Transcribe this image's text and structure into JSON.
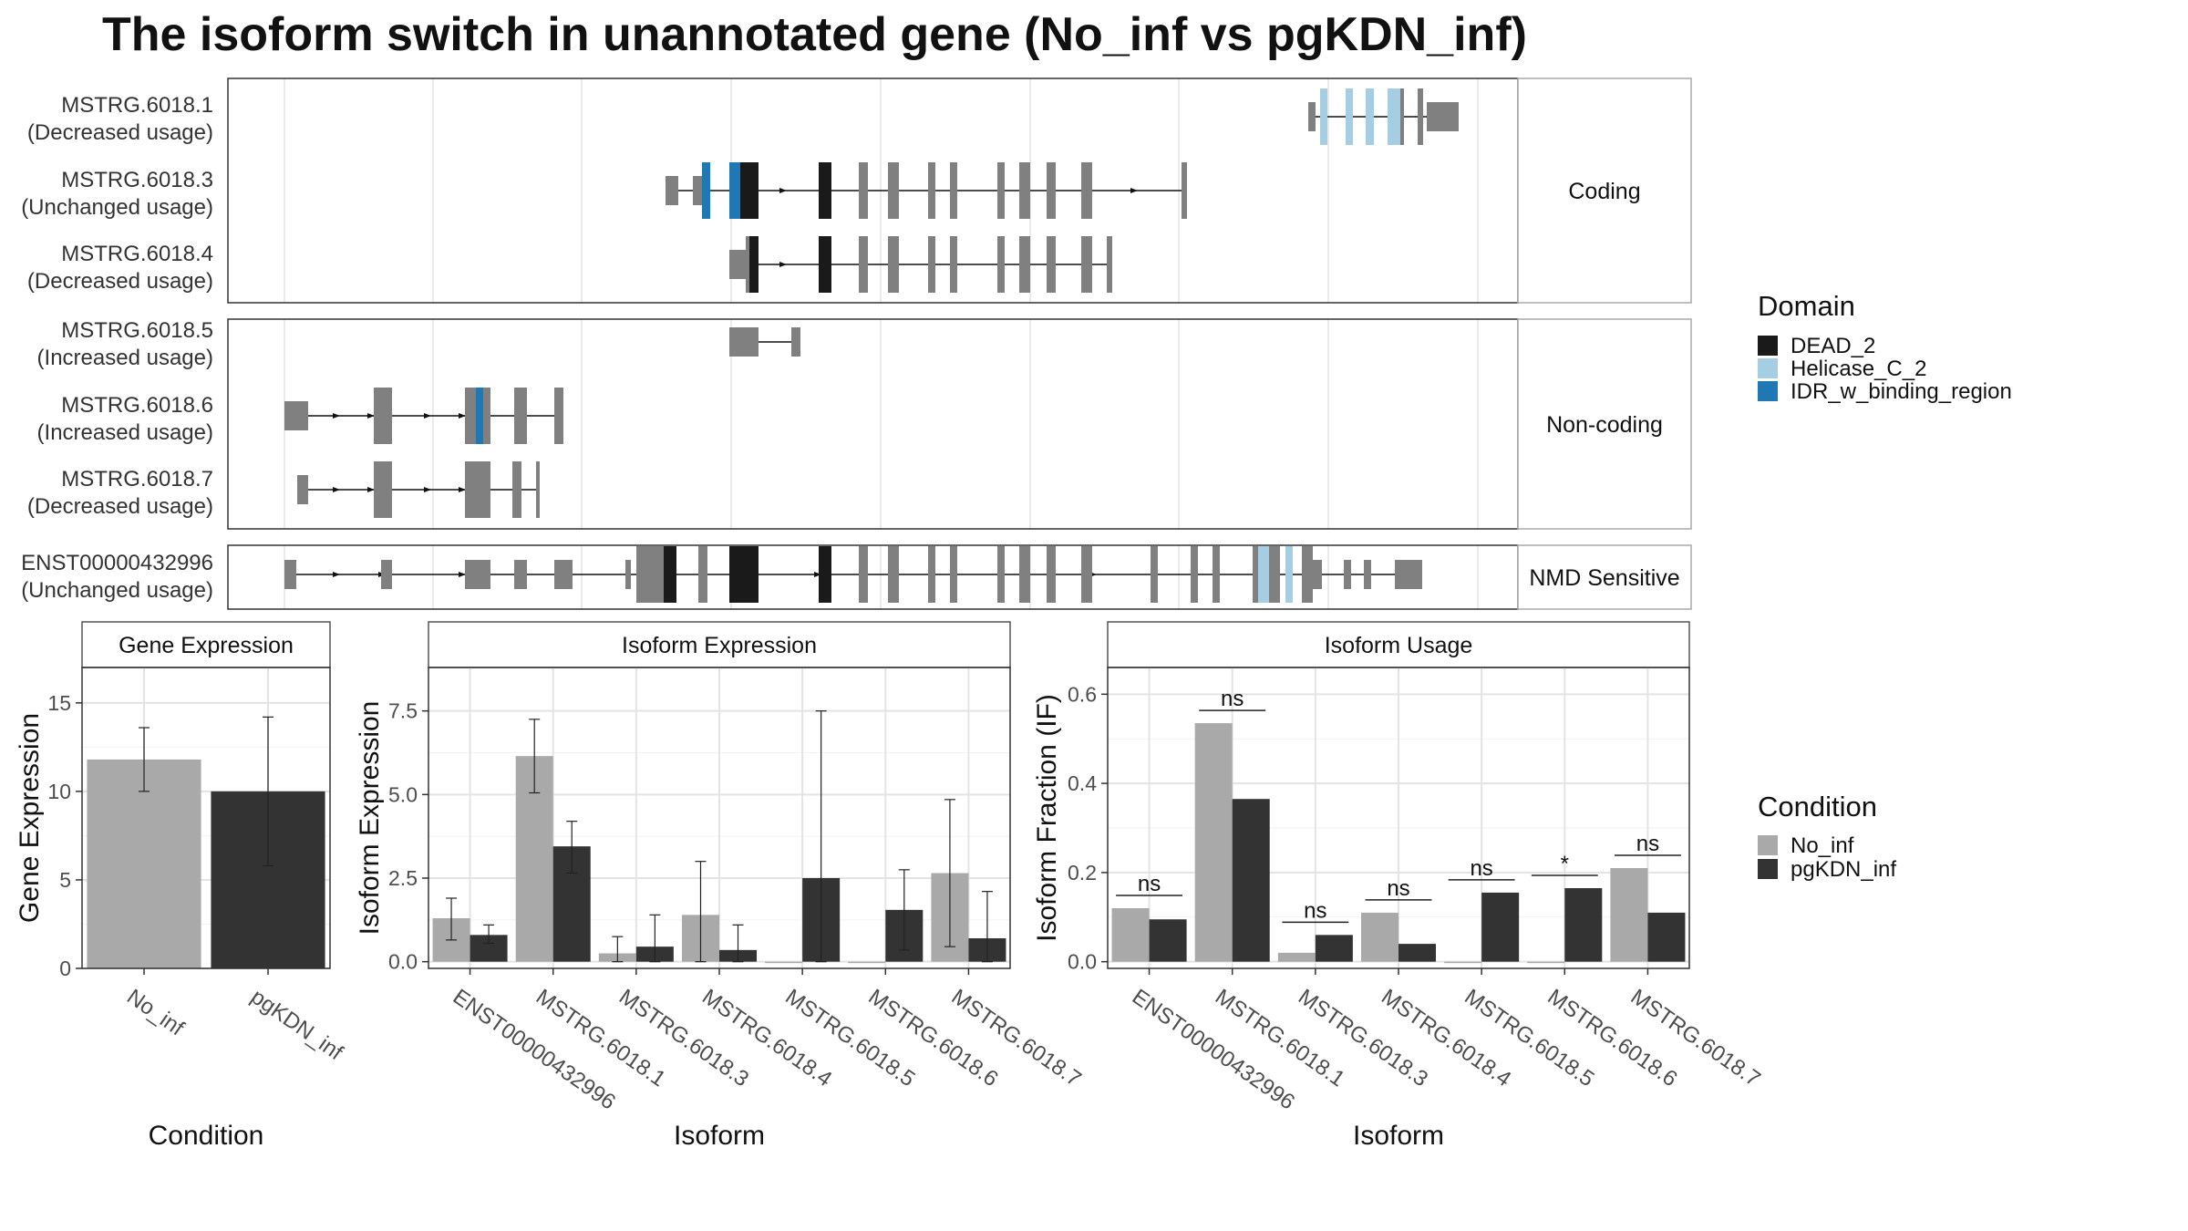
{
  "title": "The isoform switch in unannotated gene (No_inf vs pgKDN_inf)",
  "transcript_plot": {
    "panels": [
      "Coding",
      "Non-coding",
      "NMD Sensitive"
    ],
    "transcripts": [
      {
        "panel": "Coding",
        "name": "MSTRG.6018.1",
        "usage": "(Decreased usage)"
      },
      {
        "panel": "Coding",
        "name": "MSTRG.6018.3",
        "usage": "(Unchanged usage)"
      },
      {
        "panel": "Coding",
        "name": "MSTRG.6018.4",
        "usage": "(Decreased usage)"
      },
      {
        "panel": "Non-coding",
        "name": "MSTRG.6018.5",
        "usage": "(Increased usage)"
      },
      {
        "panel": "Non-coding",
        "name": "MSTRG.6018.6",
        "usage": "(Increased usage)"
      },
      {
        "panel": "Non-coding",
        "name": "MSTRG.6018.7",
        "usage": "(Decreased usage)"
      },
      {
        "panel": "NMD Sensitive",
        "name": "ENST00000432996",
        "usage": "(Unchanged usage)"
      }
    ],
    "domain_legend": {
      "title": "Domain",
      "items": [
        {
          "label": "DEAD_2",
          "color": "#1a1a1a"
        },
        {
          "label": "Helicase_C_2",
          "color": "#a6cee3"
        },
        {
          "label": "IDR_w_binding_region",
          "color": "#1f78b4"
        }
      ]
    },
    "exon_color": "#808080"
  },
  "condition_legend": {
    "title": "Condition",
    "items": [
      {
        "label": "No_inf",
        "color": "#a9a9a9"
      },
      {
        "label": "pgKDN_inf",
        "color": "#333333"
      }
    ]
  },
  "chart_data": [
    {
      "type": "bar",
      "title": "Gene Expression",
      "xlabel": "Condition",
      "ylabel": "Gene Expression",
      "ylim": [
        0,
        17
      ],
      "yticks": [
        0,
        5,
        10,
        15
      ],
      "categories": [
        "No_inf",
        "pgKDN_inf"
      ],
      "values": [
        11.8,
        10.0
      ],
      "error_low": [
        10.0,
        5.8
      ],
      "error_high": [
        13.6,
        14.2
      ],
      "colors": [
        "#a9a9a9",
        "#333333"
      ]
    },
    {
      "type": "bar",
      "title": "Isoform Expression",
      "xlabel": "Isoform",
      "ylabel": "Isoform Expression",
      "ylim": [
        -0.2,
        8.8
      ],
      "yticks": [
        0.0,
        2.5,
        5.0,
        7.5
      ],
      "ytick_labels": [
        "0.0",
        "2.5",
        "5.0",
        "7.5"
      ],
      "categories": [
        "ENST00000432996",
        "MSTRG.6018.1",
        "MSTRG.6018.3",
        "MSTRG.6018.4",
        "MSTRG.6018.5",
        "MSTRG.6018.6",
        "MSTRG.6018.7"
      ],
      "series": [
        {
          "name": "No_inf",
          "values": [
            1.3,
            6.15,
            0.25,
            1.4,
            0.0,
            0.0,
            2.65
          ],
          "error_low": [
            0.65,
            5.05,
            0.0,
            0.0,
            null,
            null,
            0.45
          ],
          "error_high": [
            1.9,
            7.25,
            0.75,
            3.0,
            null,
            null,
            4.85
          ]
        },
        {
          "name": "pgKDN_inf",
          "values": [
            0.8,
            3.45,
            0.45,
            0.35,
            2.5,
            1.55,
            0.7
          ],
          "error_low": [
            0.55,
            2.65,
            0.0,
            0.0,
            0.0,
            0.35,
            0.0
          ],
          "error_high": [
            1.1,
            4.2,
            1.4,
            1.1,
            7.5,
            2.75,
            2.1
          ]
        }
      ]
    },
    {
      "type": "bar",
      "title": "Isoform Usage",
      "xlabel": "Isoform",
      "ylabel": "Isoform Fraction (IF)",
      "ylim": [
        -0.015,
        0.66
      ],
      "yticks": [
        0.0,
        0.2,
        0.4,
        0.6
      ],
      "ytick_labels": [
        "0.0",
        "0.2",
        "0.4",
        "0.6"
      ],
      "categories": [
        "ENST00000432996",
        "MSTRG.6018.1",
        "MSTRG.6018.3",
        "MSTRG.6018.4",
        "MSTRG.6018.5",
        "MSTRG.6018.6",
        "MSTRG.6018.7"
      ],
      "series": [
        {
          "name": "No_inf",
          "values": [
            0.12,
            0.535,
            0.02,
            0.11,
            0.0,
            0.0,
            0.21
          ]
        },
        {
          "name": "pgKDN_inf",
          "values": [
            0.095,
            0.365,
            0.06,
            0.04,
            0.155,
            0.165,
            0.11
          ]
        }
      ],
      "significance": [
        "ns",
        "ns",
        "ns",
        "ns",
        "ns",
        "*",
        "ns"
      ]
    }
  ]
}
